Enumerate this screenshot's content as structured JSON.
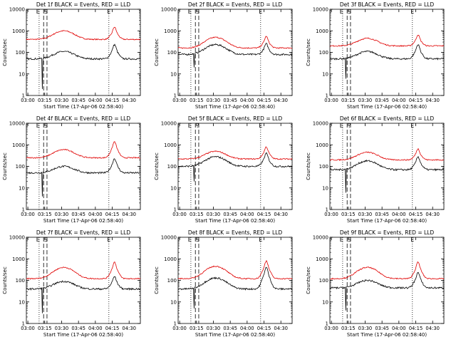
{
  "chart_data": {
    "type": "line",
    "layout": "3x3 grid of panels",
    "xlabel": "Start Time (17-Apr-06 02:58:40)",
    "ylabel": "Counts/sec",
    "x_ticks": [
      "03:00",
      "03:15",
      "03:30",
      "03:45",
      "04:00",
      "04:15",
      "04:30"
    ],
    "x_range": [
      "02:58:40",
      "04:40:00"
    ],
    "y_scale": "log",
    "y_ticks": [
      "1",
      "10",
      "100",
      "1000",
      "10000"
    ],
    "ylim": [
      1,
      10000
    ],
    "series_colors": {
      "events": "#000000",
      "lld": "#e00000"
    },
    "markers": {
      "dotted": [
        "03:10",
        "04:12",
        "04:40"
      ],
      "dashed": [
        "03:14",
        "03:17"
      ]
    },
    "panels": [
      {
        "title": "Det 1f BLACK = Events, RED = LLD",
        "labels": [
          "E",
          "S",
          "E"
        ],
        "black": {
          "base": 50,
          "peak1": 110,
          "peak2": 230,
          "spike_low": 2
        },
        "red": {
          "base": 400,
          "peak1": 1000,
          "peak2": 1500
        }
      },
      {
        "title": "Det 2f BLACK = Events, RED = LLD",
        "labels": [
          "E",
          "S",
          "E"
        ],
        "black": {
          "base": 80,
          "peak1": 230,
          "peak2": 250,
          "spike_low": 20
        },
        "red": {
          "base": 160,
          "peak1": 500,
          "peak2": 550
        }
      },
      {
        "title": "Det 3f BLACK = Events, RED = LLD",
        "labels": [
          "E",
          "S",
          "E"
        ],
        "black": {
          "base": 50,
          "peak1": 110,
          "peak2": 230,
          "spike_low": 6
        },
        "red": {
          "base": 200,
          "peak1": 450,
          "peak2": 650
        }
      },
      {
        "title": "Det 4f BLACK = Events, RED = LLD",
        "labels": [
          "E",
          "S",
          "E"
        ],
        "black": {
          "base": 50,
          "peak1": 100,
          "peak2": 230,
          "spike_low": 4
        },
        "red": {
          "base": 250,
          "peak1": 600,
          "peak2": 1400
        }
      },
      {
        "title": "Det 5f BLACK = Events, RED = LLD",
        "labels": [
          "E",
          "?",
          "E"
        ],
        "black": {
          "base": 100,
          "peak1": 280,
          "peak2": 400,
          "spike_low": 20
        },
        "red": {
          "base": 220,
          "peak1": 500,
          "peak2": 800
        }
      },
      {
        "title": "Det 6f BLACK = Events, RED = LLD",
        "labels": [
          "E",
          "?",
          "E"
        ],
        "black": {
          "base": 70,
          "peak1": 180,
          "peak2": 280,
          "spike_low": 6
        },
        "red": {
          "base": 200,
          "peak1": 450,
          "peak2": 650
        }
      },
      {
        "title": "Det 7f BLACK = Events, RED = LLD",
        "labels": [
          "E",
          "S",
          "E"
        ],
        "black": {
          "base": 40,
          "peak1": 90,
          "peak2": 150,
          "spike_low": 3
        },
        "red": {
          "base": 120,
          "peak1": 400,
          "peak2": 700
        }
      },
      {
        "title": "Det 8f BLACK = Events, RED = LLD",
        "labels": [
          "E",
          "S",
          "E"
        ],
        "black": {
          "base": 40,
          "peak1": 130,
          "peak2": 400,
          "spike_low": 5
        },
        "red": {
          "base": 120,
          "peak1": 450,
          "peak2": 800
        }
      },
      {
        "title": "Det 9f BLACK = Events, RED = LLD",
        "labels": [
          "E",
          "S",
          "E"
        ],
        "black": {
          "base": 45,
          "peak1": 100,
          "peak2": 230,
          "spike_low": 4
        },
        "red": {
          "base": 120,
          "peak1": 400,
          "peak2": 700
        }
      }
    ]
  }
}
